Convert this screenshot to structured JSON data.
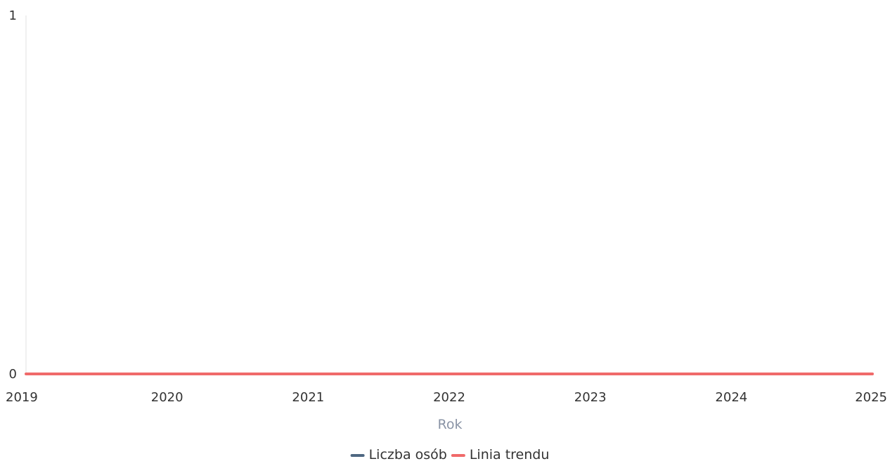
{
  "chart_data": {
    "type": "line",
    "title": "",
    "xlabel": "Rok",
    "ylabel": "",
    "x": [
      2019,
      2020,
      2021,
      2022,
      2023,
      2024,
      2025
    ],
    "xlim": [
      2019,
      2025
    ],
    "ylim": [
      0,
      1
    ],
    "yticks": [
      0,
      1
    ],
    "grid": false,
    "legend_position": "bottom-center",
    "series": [
      {
        "name": "Liczba osób",
        "color": "#4f6882",
        "values": [
          0,
          0,
          0,
          0,
          0,
          0,
          0
        ]
      },
      {
        "name": "Linia trendu",
        "color": "#f06a6a",
        "values": [
          0,
          0,
          0,
          0,
          0,
          0,
          0
        ]
      }
    ]
  }
}
